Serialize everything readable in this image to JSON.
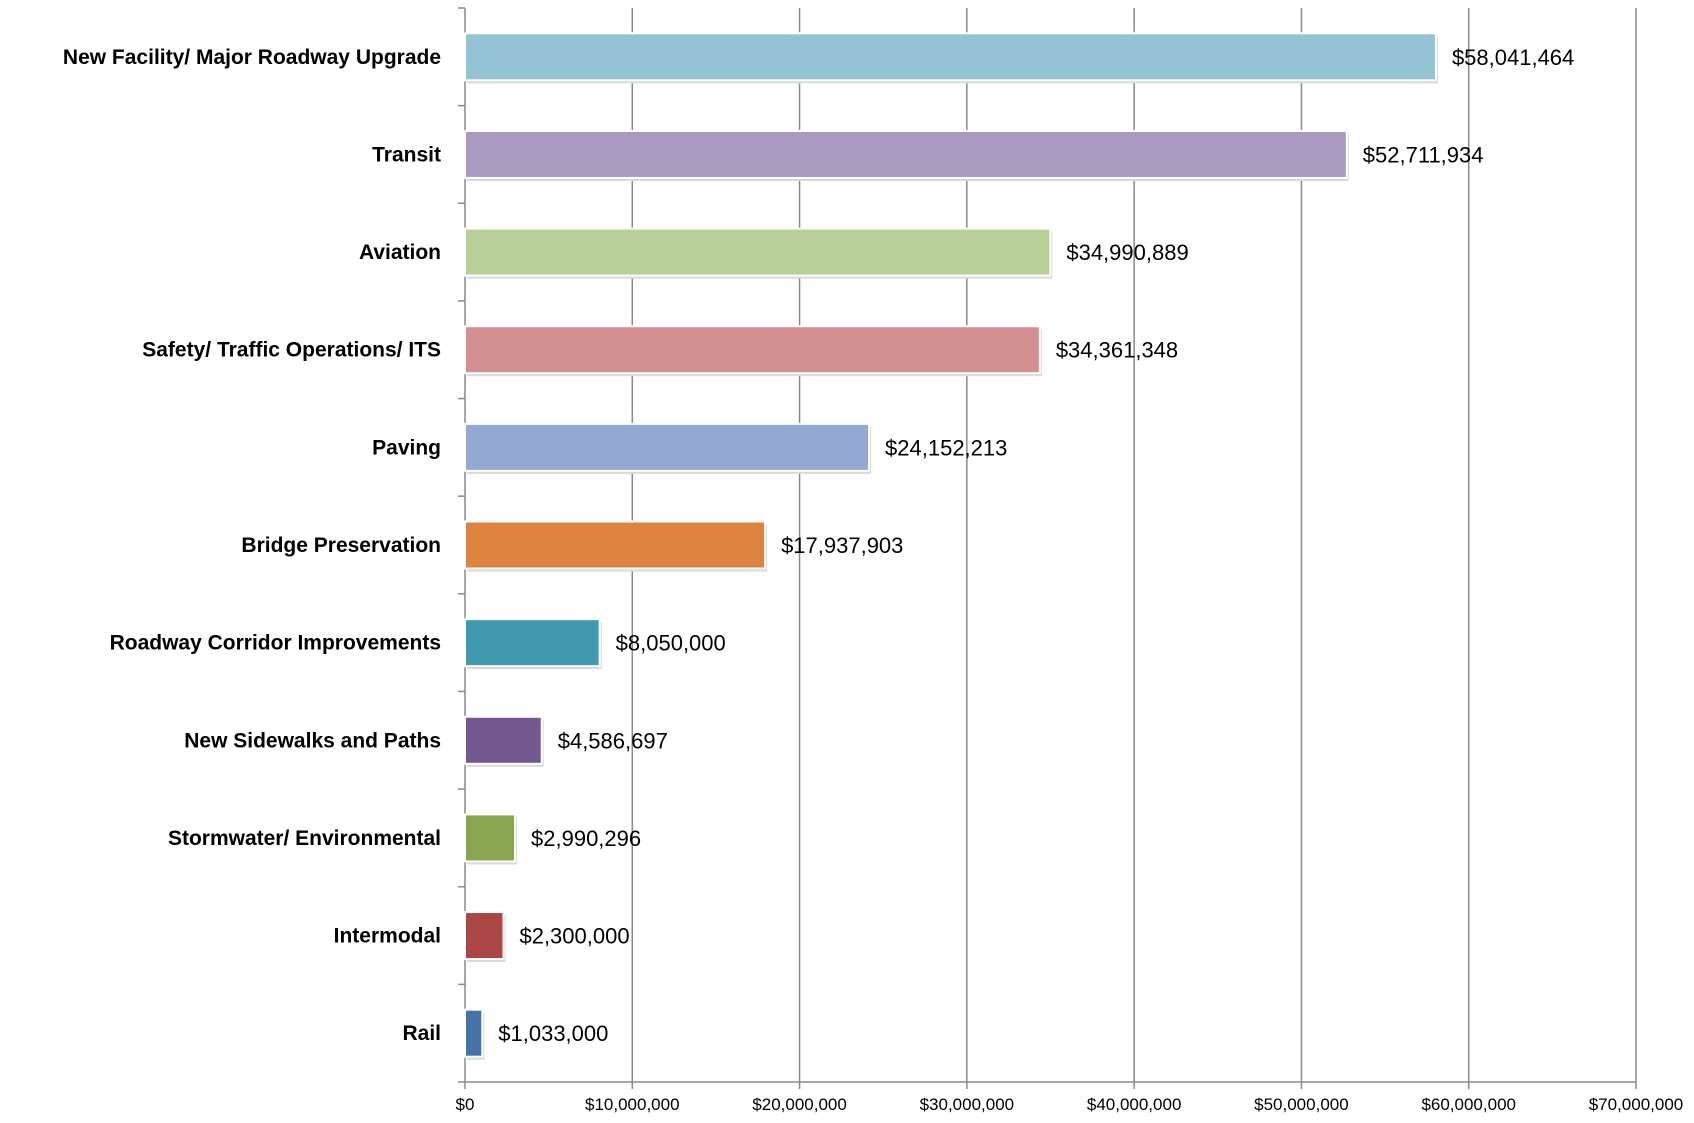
{
  "chart_data": {
    "type": "bar",
    "orientation": "horizontal",
    "categories": [
      "New Facility/ Major Roadway Upgrade",
      "Transit",
      "Aviation",
      "Safety/ Traffic Operations/ ITS",
      "Paving",
      "Bridge Preservation",
      "Roadway Corridor Improvements",
      "New Sidewalks and Paths",
      "Stormwater/ Environmental",
      "Intermodal",
      "Rail"
    ],
    "values": [
      58041464,
      52711934,
      34990889,
      34361348,
      24152213,
      17937903,
      8050000,
      4586697,
      2990296,
      2300000,
      1033000
    ],
    "value_labels": [
      "$58,041,464",
      "$52,711,934",
      "$34,990,889",
      "$34,361,348",
      "$24,152,213",
      "$17,937,903",
      "$8,050,000",
      "$4,586,697",
      "$2,990,296",
      "$2,300,000",
      "$1,033,000"
    ],
    "colors": [
      "#93C3D5",
      "#A99AC0",
      "#B8CF98",
      "#D49090",
      "#94A9D2",
      "#DC843F",
      "#429AB0",
      "#71588F",
      "#89A54E",
      "#AA4643",
      "#4572A7"
    ],
    "xlim": [
      0,
      70000000
    ],
    "x_ticks": [
      0,
      10000000,
      20000000,
      30000000,
      40000000,
      50000000,
      60000000,
      70000000
    ],
    "x_tick_labels": [
      "$0",
      "$10,000,000",
      "$20,000,000",
      "$30,000,000",
      "$40,000,000",
      "$50,000,000",
      "$60,000,000",
      "$70,000,000"
    ],
    "grid": "vertical",
    "legend": "none",
    "title": "",
    "xlabel": "",
    "ylabel": ""
  }
}
